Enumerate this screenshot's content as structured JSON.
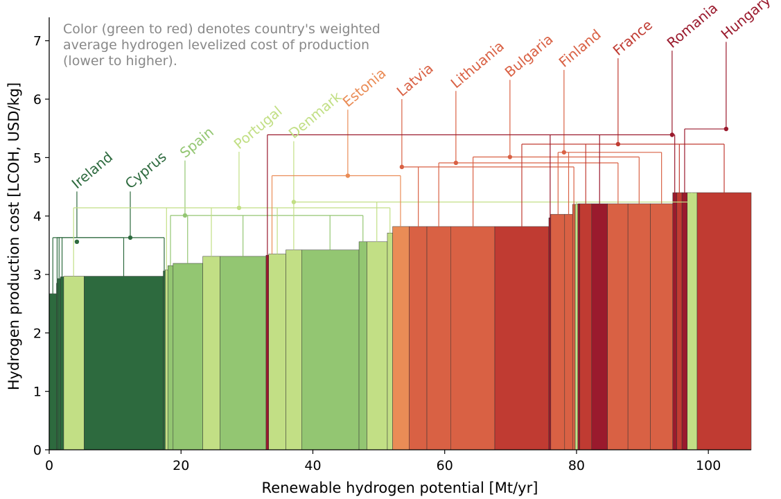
{
  "chart_data": {
    "type": "bar",
    "subtype": "supply-cost-curve (variable-width bars)",
    "title": "",
    "xlabel": "Renewable hydrogen potential [Mt/yr]",
    "ylabel": "Hydrogen production cost [LCOH, USD/kg]",
    "xlim": [
      0,
      106.5
    ],
    "ylim": [
      0,
      7.4
    ],
    "xticks": [
      0,
      20,
      40,
      60,
      80,
      100
    ],
    "yticks": [
      0,
      1,
      2,
      3,
      4,
      5,
      6,
      7
    ],
    "grid": false,
    "legend": "none",
    "annotation": [
      "Color (green to red) denotes country's weighted",
      "average hydrogen levelized cost of production",
      "(lower to higher)."
    ],
    "colors": {
      "Ireland": "#2d6a3e",
      "Cyprus": "#2d6a3e",
      "Spain": "#93c672",
      "Portugal": "#c2df85",
      "Denmark": "#c2df85",
      "Estonia": "#ea8c56",
      "Latvia": "#d96144",
      "Lithuania": "#d96144",
      "Bulgaria": "#d96144",
      "Finland": "#d96144",
      "France": "#c03b32",
      "Romania": "#9a1a2d",
      "Hungary": "#9a1a2d"
    },
    "segments": [
      {
        "country": "Ireland",
        "x0": 0.0,
        "x1": 1.1,
        "cost": 2.67
      },
      {
        "country": "Cyprus",
        "x0": 1.1,
        "x1": 1.3,
        "cost": 2.85
      },
      {
        "country": "Cyprus",
        "x0": 1.3,
        "x1": 1.7,
        "cost": 2.93
      },
      {
        "country": "Ireland",
        "x0": 1.7,
        "x1": 2.2,
        "cost": 2.96
      },
      {
        "country": "Portugal",
        "x0": 2.2,
        "x1": 5.3,
        "cost": 2.97
      },
      {
        "country": "Ireland",
        "x0": 5.3,
        "x1": 17.3,
        "cost": 2.97
      },
      {
        "country": "Cyprus",
        "x0": 17.3,
        "x1": 17.6,
        "cost": 3.06
      },
      {
        "country": "Portugal",
        "x0": 17.6,
        "x1": 18.0,
        "cost": 3.08
      },
      {
        "country": "Spain",
        "x0": 18.0,
        "x1": 18.8,
        "cost": 3.15
      },
      {
        "country": "Spain",
        "x0": 18.8,
        "x1": 23.3,
        "cost": 3.19
      },
      {
        "country": "Portugal",
        "x0": 23.3,
        "x1": 25.9,
        "cost": 3.31
      },
      {
        "country": "Spain",
        "x0": 25.9,
        "x1": 32.9,
        "cost": 3.31
      },
      {
        "country": "Romania",
        "x0": 32.9,
        "x1": 33.3,
        "cost": 3.33
      },
      {
        "country": "Portugal",
        "x0": 33.3,
        "x1": 35.9,
        "cost": 3.35
      },
      {
        "country": "Denmark",
        "x0": 35.9,
        "x1": 38.3,
        "cost": 3.42
      },
      {
        "country": "Spain",
        "x0": 38.3,
        "x1": 47.0,
        "cost": 3.42
      },
      {
        "country": "Spain",
        "x0": 47.0,
        "x1": 48.2,
        "cost": 3.56
      },
      {
        "country": "Denmark",
        "x0": 48.2,
        "x1": 51.3,
        "cost": 3.56
      },
      {
        "country": "Portugal",
        "x0": 51.3,
        "x1": 52.1,
        "cost": 3.71
      },
      {
        "country": "Estonia",
        "x0": 52.1,
        "x1": 54.6,
        "cost": 3.82
      },
      {
        "country": "Latvia",
        "x0": 54.6,
        "x1": 57.3,
        "cost": 3.82
      },
      {
        "country": "Lithuania",
        "x0": 57.3,
        "x1": 60.9,
        "cost": 3.82
      },
      {
        "country": "Bulgaria",
        "x0": 60.9,
        "x1": 67.6,
        "cost": 3.82
      },
      {
        "country": "France",
        "x0": 67.6,
        "x1": 75.8,
        "cost": 3.82
      },
      {
        "country": "Romania",
        "x0": 75.8,
        "x1": 76.1,
        "cost": 3.97
      },
      {
        "country": "Finland",
        "x0": 76.1,
        "x1": 78.2,
        "cost": 4.03
      },
      {
        "country": "Finland",
        "x0": 78.2,
        "x1": 79.4,
        "cost": 4.03
      },
      {
        "country": "Latvia",
        "x0": 79.4,
        "x1": 79.8,
        "cost": 4.2
      },
      {
        "country": "Denmark",
        "x0": 79.8,
        "x1": 80.2,
        "cost": 4.2
      },
      {
        "country": "Romania",
        "x0": 80.2,
        "x1": 80.5,
        "cost": 4.21
      },
      {
        "country": "France",
        "x0": 80.5,
        "x1": 82.3,
        "cost": 4.21
      },
      {
        "country": "Romania",
        "x0": 82.3,
        "x1": 84.7,
        "cost": 4.21
      },
      {
        "country": "Lithuania",
        "x0": 84.7,
        "x1": 87.8,
        "cost": 4.21
      },
      {
        "country": "Bulgaria",
        "x0": 87.8,
        "x1": 91.2,
        "cost": 4.21
      },
      {
        "country": "Finland",
        "x0": 91.2,
        "x1": 94.6,
        "cost": 4.21
      },
      {
        "country": "Romania",
        "x0": 94.6,
        "x1": 95.2,
        "cost": 4.4
      },
      {
        "country": "France",
        "x0": 95.2,
        "x1": 96.0,
        "cost": 4.4
      },
      {
        "country": "Hungary",
        "x0": 96.0,
        "x1": 96.8,
        "cost": 4.4
      },
      {
        "country": "Denmark",
        "x0": 96.8,
        "x1": 98.3,
        "cost": 4.4
      },
      {
        "country": "France",
        "x0": 98.3,
        "x1": 106.5,
        "cost": 4.4
      }
    ],
    "countries": [
      {
        "name": "Ireland",
        "x": 4.2,
        "cost": 3.56,
        "label_x": 4.2,
        "label_y": 4.42,
        "bracket_y": 3.63,
        "bars": [
          0.55,
          1.95,
          11.3
        ]
      },
      {
        "country_note": "",
        "name": "Cyprus",
        "x": 12.3,
        "cost": 3.63,
        "label_x": 12.3,
        "label_y": 4.42,
        "bracket_y": 3.63,
        "bars": [
          1.2,
          1.5,
          17.45
        ]
      },
      {
        "name": "Spain",
        "x": 20.6,
        "cost": 4.01,
        "label_x": 20.6,
        "label_y": 4.95,
        "bracket_y": 4.01,
        "bars": [
          18.4,
          21.0,
          29.4,
          42.6,
          47.6
        ]
      },
      {
        "name": "Portugal",
        "x": 28.8,
        "cost": 4.14,
        "label_x": 28.8,
        "label_y": 5.1,
        "bracket_y": 4.14,
        "bars": [
          3.7,
          17.8,
          24.6,
          34.6,
          51.7
        ]
      },
      {
        "name": "Denmark",
        "x": 37.1,
        "cost": 4.24,
        "label_x": 37.1,
        "label_y": 5.28,
        "bracket_y": 4.24,
        "bars": [
          37.1,
          49.7,
          80.0,
          97.5
        ]
      },
      {
        "name": "Estonia",
        "x": 45.3,
        "cost": 4.69,
        "label_x": 45.3,
        "label_y": 5.82,
        "bracket_y": 4.69,
        "bars": [
          33.8,
          53.3
        ]
      },
      {
        "name": "Latvia",
        "x": 53.5,
        "cost": 4.84,
        "label_x": 53.5,
        "label_y": 6.0,
        "bracket_y": 4.84,
        "bars": [
          56.0,
          79.6
        ]
      },
      {
        "name": "Lithuania",
        "x": 61.7,
        "cost": 4.91,
        "label_x": 61.7,
        "label_y": 6.14,
        "bracket_y": 4.91,
        "bars": [
          59.1,
          86.3
        ]
      },
      {
        "name": "Bulgaria",
        "x": 69.9,
        "cost": 5.01,
        "label_x": 69.9,
        "label_y": 6.33,
        "bracket_y": 5.01,
        "bars": [
          64.3,
          89.5
        ]
      },
      {
        "name": "Finland",
        "x": 78.1,
        "cost": 5.09,
        "label_x": 78.1,
        "label_y": 6.5,
        "bracket_y": 5.09,
        "bars": [
          77.2,
          78.8,
          92.9
        ]
      },
      {
        "name": "France",
        "x": 86.3,
        "cost": 5.23,
        "label_x": 86.3,
        "label_y": 6.7,
        "bracket_y": 5.23,
        "bars": [
          71.7,
          81.4,
          95.6,
          102.4
        ]
      },
      {
        "name": "Romania",
        "x": 94.5,
        "cost": 5.39,
        "label_x": 94.5,
        "label_y": 6.83,
        "bracket_y": 5.39,
        "bars": [
          33.1,
          76.0,
          83.5,
          94.9
        ]
      },
      {
        "name": "Hungary",
        "x": 102.7,
        "cost": 5.49,
        "label_x": 102.7,
        "label_y": 6.98,
        "bracket_y": 5.49,
        "bars": [
          96.4
        ]
      }
    ]
  }
}
